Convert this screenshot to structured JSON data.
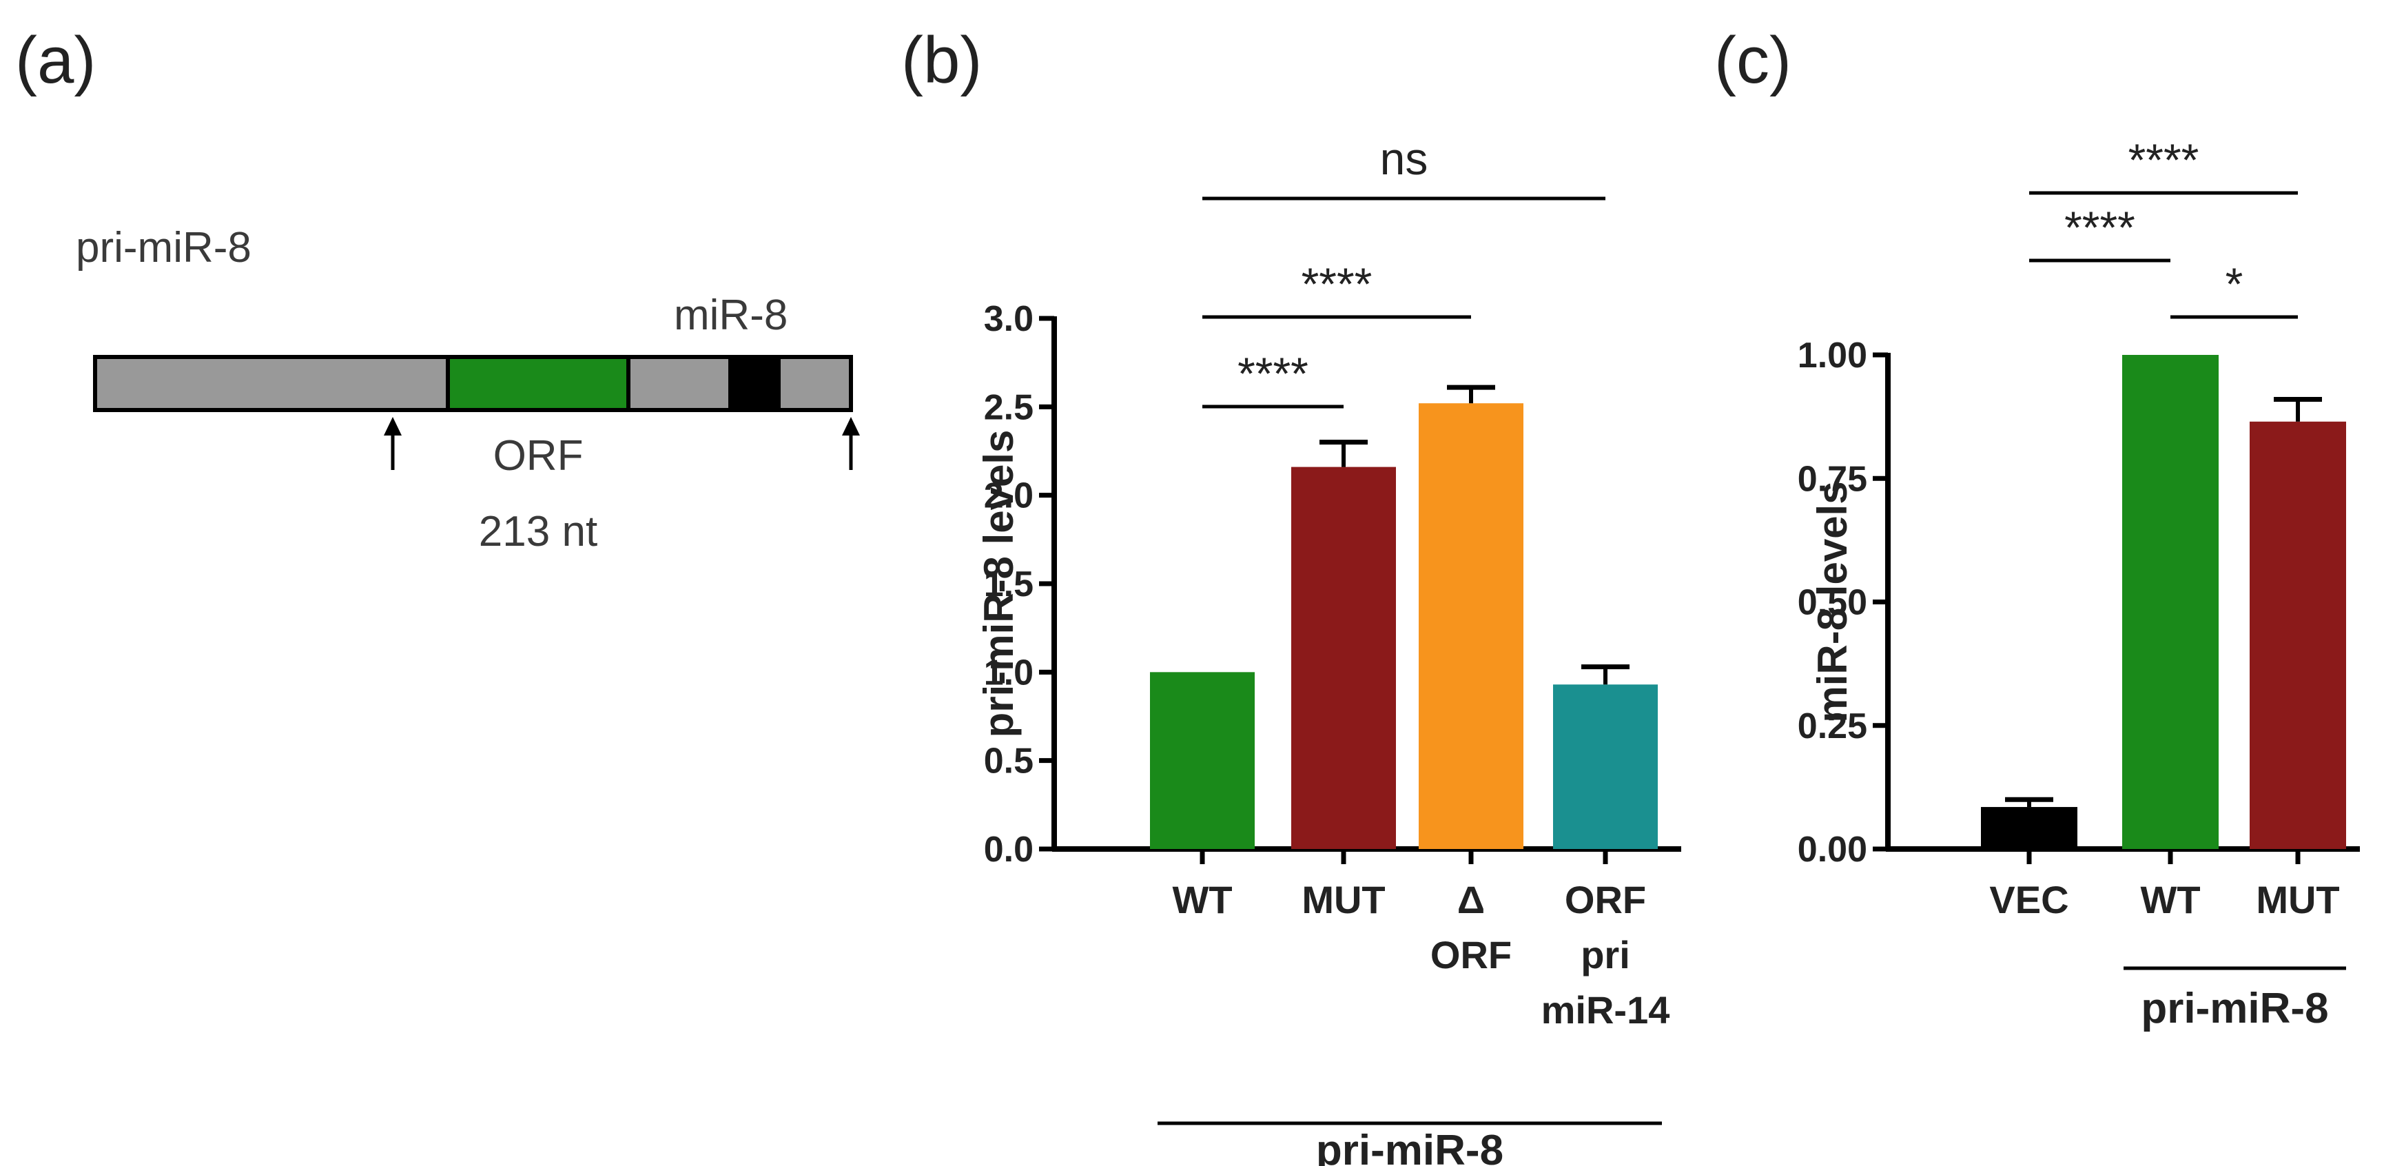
{
  "panel_labels": {
    "a": "(a)",
    "b": "(b)",
    "c": "(c)"
  },
  "diagram": {
    "title": "pri-miR-8",
    "mature_label": "miR-8",
    "orf_label": "ORF",
    "orf_length": "213 nt",
    "segment_colors": {
      "flank": "#999999",
      "orf": "#1a8a1a",
      "mature": "#000000"
    }
  },
  "chart_data": [
    {
      "type": "bar",
      "panel": "(b)",
      "ylabel": "pri-miR-8 levels",
      "ylim": [
        0,
        3.0
      ],
      "yticks": [
        "0.0",
        "0.5",
        "1.0",
        "1.5",
        "2.0",
        "2.5",
        "3.0"
      ],
      "categories": [
        {
          "lines": [
            "WT"
          ]
        },
        {
          "lines": [
            "MUT"
          ]
        },
        {
          "lines": [
            "Δ",
            "ORF"
          ]
        },
        {
          "lines": [
            "ORF",
            "pri",
            "miR-14"
          ]
        }
      ],
      "values": [
        1.0,
        2.16,
        2.52,
        0.93
      ],
      "errors": [
        0,
        0.14,
        0.09,
        0.1
      ],
      "colors": [
        "#1a8a1a",
        "#8b1a1a",
        "#f7941d",
        "#1a9090"
      ],
      "group_label": "pri-miR-8",
      "significance": [
        {
          "from": 0,
          "to": 1,
          "label": "****"
        },
        {
          "from": 0,
          "to": 2,
          "label": "****"
        },
        {
          "from": 0,
          "to": 3,
          "label": "ns"
        }
      ]
    },
    {
      "type": "bar",
      "panel": "(c)",
      "ylabel": "miR-8 levels",
      "ylim": [
        0,
        1.0
      ],
      "yticks": [
        "0.00",
        "0.25",
        "0.50",
        "0.75",
        "1.00"
      ],
      "categories": [
        {
          "lines": [
            "VEC"
          ]
        },
        {
          "lines": [
            "WT"
          ]
        },
        {
          "lines": [
            "MUT"
          ]
        }
      ],
      "values": [
        0.085,
        1.0,
        0.865
      ],
      "errors": [
        0.015,
        0,
        0.045
      ],
      "colors": [
        "#000000",
        "#1a8a1a",
        "#8b1a1a"
      ],
      "group_label": "pri-miR-8",
      "significance": [
        {
          "from": 0,
          "to": 1,
          "label": "****"
        },
        {
          "from": 0,
          "to": 2,
          "label": "****"
        },
        {
          "from": 1,
          "to": 2,
          "label": "*"
        }
      ]
    }
  ]
}
